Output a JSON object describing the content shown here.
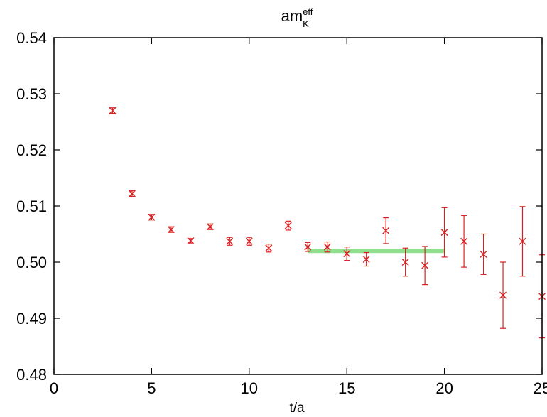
{
  "chart_data": {
    "type": "scatter",
    "title": {
      "base": "am",
      "subscript": "K",
      "superscript": "eff"
    },
    "xlabel": "t/a",
    "ylabel": "",
    "xlim": [
      0,
      25
    ],
    "ylim": [
      0.48,
      0.54
    ],
    "x_ticks": [
      0,
      5,
      10,
      15,
      20,
      25
    ],
    "x_tick_labels": [
      "0",
      "5",
      "10",
      "15",
      "20",
      "25"
    ],
    "y_ticks": [
      0.48,
      0.49,
      0.5,
      0.51,
      0.52,
      0.53,
      0.54
    ],
    "y_tick_labels": [
      "0.48",
      "0.49",
      "0.50",
      "0.51",
      "0.52",
      "0.53",
      "0.54"
    ],
    "grid": false,
    "series": [
      {
        "marker": "x",
        "color": "#d92020",
        "points": [
          {
            "x": 3,
            "y": 0.527,
            "err": 0.0005
          },
          {
            "x": 4,
            "y": 0.5122,
            "err": 0.0005
          },
          {
            "x": 5,
            "y": 0.508,
            "err": 0.0005
          },
          {
            "x": 6,
            "y": 0.5058,
            "err": 0.0005
          },
          {
            "x": 7,
            "y": 0.5038,
            "err": 0.0004
          },
          {
            "x": 8,
            "y": 0.5063,
            "err": 0.0005
          },
          {
            "x": 9,
            "y": 0.5037,
            "err": 0.0007
          },
          {
            "x": 10,
            "y": 0.5037,
            "err": 0.0007
          },
          {
            "x": 11,
            "y": 0.5025,
            "err": 0.0007
          },
          {
            "x": 12,
            "y": 0.5065,
            "err": 0.0008
          },
          {
            "x": 13,
            "y": 0.5027,
            "err": 0.0008
          },
          {
            "x": 14,
            "y": 0.5027,
            "err": 0.0009
          },
          {
            "x": 15,
            "y": 0.5015,
            "err": 0.0012
          },
          {
            "x": 16,
            "y": 0.5005,
            "err": 0.0012
          },
          {
            "x": 17,
            "y": 0.5056,
            "err": 0.0023
          },
          {
            "x": 18,
            "y": 0.5,
            "err": 0.0025
          },
          {
            "x": 19,
            "y": 0.4994,
            "err": 0.0034
          },
          {
            "x": 20,
            "y": 0.5053,
            "err": 0.0044
          },
          {
            "x": 21,
            "y": 0.5037,
            "err": 0.0046
          },
          {
            "x": 22,
            "y": 0.5014,
            "err": 0.0036
          },
          {
            "x": 23,
            "y": 0.4941,
            "err": 0.0059
          },
          {
            "x": 24,
            "y": 0.5037,
            "err": 0.0062
          },
          {
            "x": 25,
            "y": 0.4939,
            "err": 0.0074
          }
        ]
      }
    ],
    "fit": {
      "x_range": [
        13,
        20
      ],
      "y": 0.502,
      "color": "#90e090"
    }
  }
}
